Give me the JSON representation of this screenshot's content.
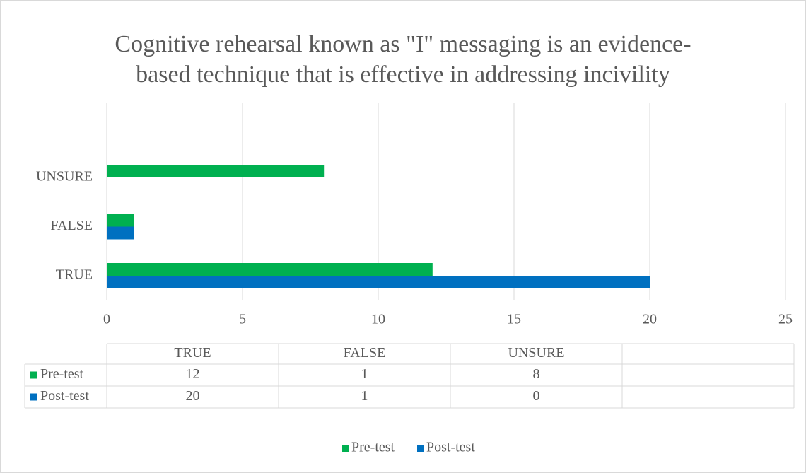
{
  "chart_data": {
    "type": "bar",
    "orientation": "horizontal",
    "title": "Cognitive rehearsal known as \"I\" messaging is an evidence-based technique that is effective in addressing incivility",
    "title_lines": [
      "Cognitive rehearsal known as \"I\" messaging is an evidence-",
      "based technique that is effective in addressing incivility"
    ],
    "categories": [
      "TRUE",
      "FALSE",
      "UNSURE"
    ],
    "series": [
      {
        "name": "Pre-test",
        "color": "#00b050",
        "values": [
          12,
          1,
          8
        ]
      },
      {
        "name": "Post-test",
        "color": "#0070c0",
        "values": [
          20,
          1,
          0
        ]
      }
    ],
    "xlim": [
      0,
      25
    ],
    "xticks": [
      0,
      5,
      10,
      15,
      20,
      25
    ],
    "grid": true,
    "legend": "bottom",
    "data_table": true
  }
}
